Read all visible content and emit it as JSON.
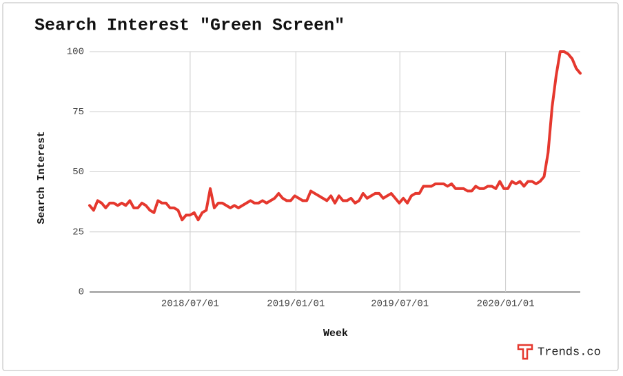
{
  "chart_data": {
    "type": "line",
    "title": "Search Interest \"Green Screen\"",
    "y_label": "Search Interest",
    "x_label": "Week",
    "brand": "Trends.co",
    "color": "#e5382e",
    "grid": true,
    "x": [
      "2018-01-07",
      "2018-01-14",
      "2018-01-21",
      "2018-01-28",
      "2018-02-04",
      "2018-02-11",
      "2018-02-18",
      "2018-02-25",
      "2018-03-04",
      "2018-03-11",
      "2018-03-18",
      "2018-03-25",
      "2018-04-01",
      "2018-04-08",
      "2018-04-15",
      "2018-04-22",
      "2018-04-29",
      "2018-05-06",
      "2018-05-13",
      "2018-05-20",
      "2018-05-27",
      "2018-06-03",
      "2018-06-10",
      "2018-06-17",
      "2018-06-24",
      "2018-07-01",
      "2018-07-08",
      "2018-07-15",
      "2018-07-22",
      "2018-07-29",
      "2018-08-05",
      "2018-08-12",
      "2018-08-19",
      "2018-08-26",
      "2018-09-02",
      "2018-09-09",
      "2018-09-16",
      "2018-09-23",
      "2018-09-30",
      "2018-10-07",
      "2018-10-14",
      "2018-10-21",
      "2018-10-28",
      "2018-11-04",
      "2018-11-11",
      "2018-11-18",
      "2018-11-25",
      "2018-12-02",
      "2018-12-09",
      "2018-12-16",
      "2018-12-23",
      "2018-12-30",
      "2019-01-06",
      "2019-01-13",
      "2019-01-20",
      "2019-01-27",
      "2019-02-03",
      "2019-02-10",
      "2019-02-17",
      "2019-02-24",
      "2019-03-03",
      "2019-03-10",
      "2019-03-17",
      "2019-03-24",
      "2019-03-31",
      "2019-04-07",
      "2019-04-14",
      "2019-04-21",
      "2019-04-28",
      "2019-05-05",
      "2019-05-12",
      "2019-05-19",
      "2019-05-26",
      "2019-06-02",
      "2019-06-09",
      "2019-06-16",
      "2019-06-23",
      "2019-06-30",
      "2019-07-07",
      "2019-07-14",
      "2019-07-21",
      "2019-07-28",
      "2019-08-04",
      "2019-08-11",
      "2019-08-18",
      "2019-08-25",
      "2019-09-01",
      "2019-09-08",
      "2019-09-15",
      "2019-09-22",
      "2019-09-29",
      "2019-10-06",
      "2019-10-13",
      "2019-10-20",
      "2019-10-27",
      "2019-11-03",
      "2019-11-10",
      "2019-11-17",
      "2019-11-24",
      "2019-12-01",
      "2019-12-08",
      "2019-12-15",
      "2019-12-22",
      "2019-12-29",
      "2020-01-05",
      "2020-01-12",
      "2020-01-19",
      "2020-01-26",
      "2020-02-02",
      "2020-02-09",
      "2020-02-16",
      "2020-02-23",
      "2020-03-01",
      "2020-03-08",
      "2020-03-15",
      "2020-03-22",
      "2020-03-29",
      "2020-04-05",
      "2020-04-12",
      "2020-04-19",
      "2020-04-26",
      "2020-05-03",
      "2020-05-10"
    ],
    "values": [
      36,
      34,
      38,
      37,
      35,
      37,
      37,
      36,
      37,
      36,
      38,
      35,
      35,
      37,
      36,
      34,
      33,
      38,
      37,
      37,
      35,
      35,
      34,
      30,
      32,
      32,
      33,
      30,
      33,
      34,
      43,
      35,
      37,
      37,
      36,
      35,
      36,
      35,
      36,
      37,
      38,
      37,
      37,
      38,
      37,
      38,
      39,
      41,
      39,
      38,
      38,
      40,
      39,
      38,
      38,
      42,
      41,
      40,
      39,
      38,
      40,
      37,
      40,
      38,
      38,
      39,
      37,
      38,
      41,
      39,
      40,
      41,
      41,
      39,
      40,
      41,
      39,
      37,
      39,
      37,
      40,
      41,
      41,
      44,
      44,
      44,
      45,
      45,
      45,
      44,
      45,
      43,
      43,
      43,
      42,
      42,
      44,
      43,
      43,
      44,
      44,
      43,
      46,
      43,
      43,
      46,
      45,
      46,
      44,
      46,
      46,
      45,
      46,
      48,
      58,
      77,
      90,
      100,
      100,
      99,
      97,
      93,
      91
    ],
    "xlim": [
      "2018-01-07",
      "2020-05-10"
    ],
    "xticks": [
      {
        "value": "2018-07-01",
        "label": "2018/07/01"
      },
      {
        "value": "2019-01-01",
        "label": "2019/01/01"
      },
      {
        "value": "2019-07-01",
        "label": "2019/07/01"
      },
      {
        "value": "2020-01-01",
        "label": "2020/01/01"
      }
    ],
    "ylim": [
      0,
      100
    ],
    "yticks": [
      0,
      25,
      50,
      75,
      100
    ]
  }
}
